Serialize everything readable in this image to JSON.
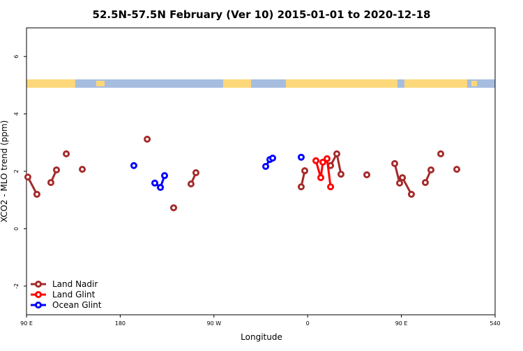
{
  "chart_data": {
    "type": "line",
    "title": "52.5N-57.5N February (Ver 10)   2015-01-01 to 2020-12-18",
    "x_label": "Longitude",
    "y_label": "XCO2 - MLO trend (ppm)",
    "xlim": [
      90,
      540
    ],
    "xticks": [
      {
        "value": 90,
        "label": "90 E"
      },
      180,
      {
        "value": 270,
        "label": "90 W"
      },
      {
        "value": 360,
        "label": "0"
      },
      {
        "value": 450,
        "label": "90 E"
      },
      540
    ],
    "ylim": [
      -3,
      7
    ],
    "yticks": [
      -2,
      0,
      2,
      4,
      6
    ],
    "grid": false,
    "legend": "bottom-left",
    "series": [
      {
        "name": "Land Nadir",
        "color": "#a52a2a",
        "x": [
          91.3,
          100,
          null,
          113.4,
          118.8,
          null,
          128.2,
          null,
          143.6,
          null,
          205.9,
          null,
          231.3,
          null,
          248,
          252.7,
          null,
          353.8,
          357.2,
          null,
          382,
          388,
          392,
          null,
          416.8,
          null,
          443.6,
          448.3,
          451,
          459.6,
          null,
          473,
          478.4,
          null,
          487.8,
          null,
          503.2
        ],
        "values": [
          1.8,
          1.2,
          null,
          1.61,
          2.05,
          null,
          2.61,
          null,
          2.07,
          null,
          3.12,
          null,
          0.73,
          null,
          1.56,
          1.95,
          null,
          1.46,
          2.02,
          null,
          2.2,
          2.61,
          1.9,
          null,
          1.88,
          null,
          2.27,
          1.59,
          1.78,
          1.2,
          null,
          1.61,
          2.05,
          null,
          2.61,
          null,
          2.07
        ]
      },
      {
        "name": "Land Glint",
        "color": "#ff0000",
        "x": [
          367.9,
          372.6,
          374.6,
          378.6,
          382
        ],
        "values": [
          2.37,
          1.78,
          2.32,
          2.44,
          1.46
        ]
      },
      {
        "name": "Ocean Glint",
        "color": "#0000ff",
        "x": [
          193.1,
          null,
          213.2,
          218.6,
          222.6,
          null,
          319.7,
          323.7,
          326.4,
          null,
          353.8
        ],
        "values": [
          2.2,
          null,
          1.59,
          1.44,
          1.85,
          null,
          2.17,
          2.41,
          2.46,
          null,
          2.49
        ]
      }
    ]
  }
}
